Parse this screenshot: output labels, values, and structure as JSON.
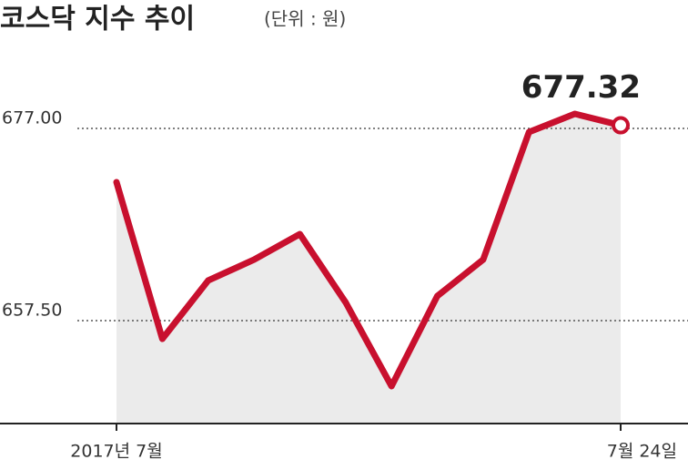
{
  "chart_data": {
    "type": "line",
    "title": "코스닥 지수 추이",
    "subtitle": "(단위 : 원)",
    "categories": [
      "2017년 7월",
      null,
      null,
      null,
      null,
      null,
      null,
      null,
      null,
      null,
      null,
      "7월 24일"
    ],
    "series": [
      {
        "color": "#c8102e",
        "values": [
          671.55,
          655.65,
          661.57,
          663.69,
          666.28,
          659.35,
          650.85,
          660.0,
          663.69,
          676.63,
          678.48,
          677.32
        ]
      }
    ],
    "ylim": [
      647.06,
      685.41
    ],
    "yticks": [
      {
        "value": 657.5,
        "label": "657.50"
      },
      {
        "value": 677,
        "label": "677.00"
      }
    ],
    "grid": true
  }
}
